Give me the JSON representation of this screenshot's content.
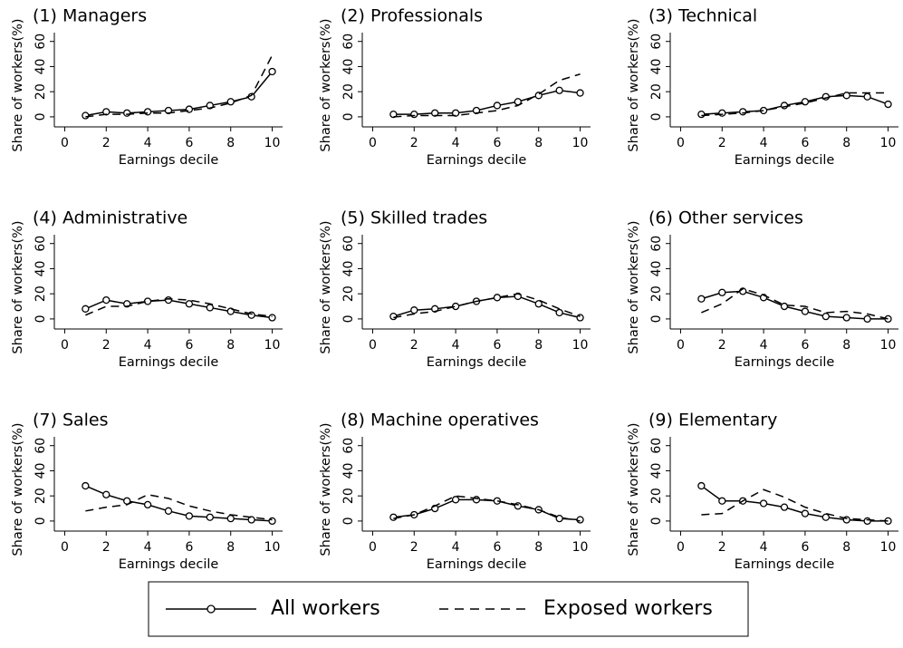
{
  "chart_data": [
    {
      "type": "line",
      "title": "(1) Managers",
      "xlabel": "Earnings decile",
      "ylabel": "Share of workers(%)",
      "x": [
        1,
        2,
        3,
        4,
        5,
        6,
        7,
        8,
        9,
        10
      ],
      "xlim": [
        -0.5,
        10.5
      ],
      "ylim": [
        -8,
        67
      ],
      "xticks": [
        0,
        2,
        4,
        6,
        8,
        10
      ],
      "yticks": [
        0,
        20,
        40,
        60
      ],
      "series": [
        {
          "name": "All workers",
          "color": "#000000",
          "dash": "solid",
          "marker": "circle",
          "values": [
            1,
            4,
            3,
            4,
            5,
            6,
            9,
            12,
            16,
            36
          ]
        },
        {
          "name": "Exposed workers",
          "color": "#000000",
          "dash": "dashed",
          "marker": "none",
          "values": [
            0,
            2,
            2,
            3,
            3,
            5,
            7,
            11,
            17,
            49
          ]
        }
      ]
    },
    {
      "type": "line",
      "title": "(2) Professionals",
      "xlabel": "Earnings decile",
      "ylabel": "Share of workers(%)",
      "x": [
        1,
        2,
        3,
        4,
        5,
        6,
        7,
        8,
        9,
        10
      ],
      "xlim": [
        -0.5,
        10.5
      ],
      "ylim": [
        -8,
        67
      ],
      "xticks": [
        0,
        2,
        4,
        6,
        8,
        10
      ],
      "yticks": [
        0,
        20,
        40,
        60
      ],
      "series": [
        {
          "name": "All workers",
          "color": "#000000",
          "dash": "solid",
          "marker": "circle",
          "values": [
            2,
            2,
            3,
            3,
            5,
            9,
            12,
            17,
            21,
            19
          ]
        },
        {
          "name": "Exposed workers",
          "color": "#000000",
          "dash": "dashed",
          "marker": "none",
          "values": [
            0,
            1,
            1,
            1,
            3,
            5,
            9,
            18,
            29,
            34
          ]
        }
      ]
    },
    {
      "type": "line",
      "title": "(3) Technical",
      "xlabel": "Earnings decile",
      "ylabel": "Share of workers(%)",
      "x": [
        1,
        2,
        3,
        4,
        5,
        6,
        7,
        8,
        9,
        10
      ],
      "xlim": [
        -0.5,
        10.5
      ],
      "ylim": [
        -8,
        67
      ],
      "xticks": [
        0,
        2,
        4,
        6,
        8,
        10
      ],
      "yticks": [
        0,
        20,
        40,
        60
      ],
      "series": [
        {
          "name": "All workers",
          "color": "#000000",
          "dash": "solid",
          "marker": "circle",
          "values": [
            2,
            3,
            4,
            5,
            9,
            12,
            16,
            17,
            16,
            10
          ]
        },
        {
          "name": "Exposed workers",
          "color": "#000000",
          "dash": "dashed",
          "marker": "none",
          "values": [
            1,
            2,
            3,
            5,
            8,
            11,
            15,
            19,
            19,
            19
          ]
        }
      ]
    },
    {
      "type": "line",
      "title": "(4) Administrative",
      "xlabel": "Earnings decile",
      "ylabel": "Share of workers(%)",
      "x": [
        1,
        2,
        3,
        4,
        5,
        6,
        7,
        8,
        9,
        10
      ],
      "xlim": [
        -0.5,
        10.5
      ],
      "ylim": [
        -8,
        67
      ],
      "xticks": [
        0,
        2,
        4,
        6,
        8,
        10
      ],
      "yticks": [
        0,
        20,
        40,
        60
      ],
      "series": [
        {
          "name": "All workers",
          "color": "#000000",
          "dash": "solid",
          "marker": "circle",
          "values": [
            8,
            15,
            12,
            14,
            15,
            12,
            9,
            6,
            3,
            1
          ]
        },
        {
          "name": "Exposed workers",
          "color": "#000000",
          "dash": "dashed",
          "marker": "none",
          "values": [
            3,
            10,
            10,
            14,
            16,
            15,
            12,
            8,
            4,
            2
          ]
        }
      ]
    },
    {
      "type": "line",
      "title": "(5) Skilled trades",
      "xlabel": "Earnings decile",
      "ylabel": "Share of workers(%)",
      "x": [
        1,
        2,
        3,
        4,
        5,
        6,
        7,
        8,
        9,
        10
      ],
      "xlim": [
        -0.5,
        10.5
      ],
      "ylim": [
        -8,
        67
      ],
      "xticks": [
        0,
        2,
        4,
        6,
        8,
        10
      ],
      "yticks": [
        0,
        20,
        40,
        60
      ],
      "series": [
        {
          "name": "All workers",
          "color": "#000000",
          "dash": "solid",
          "marker": "circle",
          "values": [
            2,
            7,
            8,
            10,
            14,
            17,
            18,
            12,
            5,
            1
          ]
        },
        {
          "name": "Exposed workers",
          "color": "#000000",
          "dash": "dashed",
          "marker": "none",
          "values": [
            1,
            4,
            6,
            10,
            14,
            17,
            20,
            15,
            8,
            2
          ]
        }
      ]
    },
    {
      "type": "line",
      "title": "(6) Other services",
      "xlabel": "Earnings decile",
      "ylabel": "Share of workers(%)",
      "x": [
        1,
        2,
        3,
        4,
        5,
        6,
        7,
        8,
        9,
        10
      ],
      "xlim": [
        -0.5,
        10.5
      ],
      "ylim": [
        -8,
        67
      ],
      "xticks": [
        0,
        2,
        4,
        6,
        8,
        10
      ],
      "yticks": [
        0,
        20,
        40,
        60
      ],
      "series": [
        {
          "name": "All workers",
          "color": "#000000",
          "dash": "solid",
          "marker": "circle",
          "values": [
            16,
            21,
            22,
            17,
            10,
            6,
            2,
            1,
            0,
            0
          ]
        },
        {
          "name": "Exposed workers",
          "color": "#000000",
          "dash": "dashed",
          "marker": "none",
          "values": [
            5,
            12,
            24,
            19,
            11,
            10,
            5,
            6,
            4,
            0
          ]
        }
      ]
    },
    {
      "type": "line",
      "title": "(7) Sales",
      "xlabel": "Earnings decile",
      "ylabel": "Share of workers(%)",
      "x": [
        1,
        2,
        3,
        4,
        5,
        6,
        7,
        8,
        9,
        10
      ],
      "xlim": [
        -0.5,
        10.5
      ],
      "ylim": [
        -8,
        67
      ],
      "xticks": [
        0,
        2,
        4,
        6,
        8,
        10
      ],
      "yticks": [
        0,
        20,
        40,
        60
      ],
      "series": [
        {
          "name": "All workers",
          "color": "#000000",
          "dash": "solid",
          "marker": "circle",
          "values": [
            28,
            21,
            16,
            13,
            8,
            4,
            3,
            2,
            1,
            0
          ]
        },
        {
          "name": "Exposed workers",
          "color": "#000000",
          "dash": "dashed",
          "marker": "none",
          "values": [
            8,
            11,
            13,
            21,
            18,
            12,
            8,
            5,
            3,
            1
          ]
        }
      ]
    },
    {
      "type": "line",
      "title": "(8) Machine operatives",
      "xlabel": "Earnings decile",
      "ylabel": "Share of workers(%)",
      "x": [
        1,
        2,
        3,
        4,
        5,
        6,
        7,
        8,
        9,
        10
      ],
      "xlim": [
        -0.5,
        10.5
      ],
      "ylim": [
        -8,
        67
      ],
      "xticks": [
        0,
        2,
        4,
        6,
        8,
        10
      ],
      "yticks": [
        0,
        20,
        40,
        60
      ],
      "series": [
        {
          "name": "All workers",
          "color": "#000000",
          "dash": "solid",
          "marker": "circle",
          "values": [
            3,
            5,
            10,
            17,
            17,
            16,
            12,
            9,
            2,
            1
          ]
        },
        {
          "name": "Exposed workers",
          "color": "#000000",
          "dash": "dashed",
          "marker": "none",
          "values": [
            2,
            5,
            12,
            20,
            18,
            16,
            13,
            9,
            3,
            0
          ]
        }
      ]
    },
    {
      "type": "line",
      "title": "(9) Elementary",
      "xlabel": "Earnings decile",
      "ylabel": "Share of workers(%)",
      "x": [
        1,
        2,
        3,
        4,
        5,
        6,
        7,
        8,
        9,
        10
      ],
      "xlim": [
        -0.5,
        10.5
      ],
      "ylim": [
        -8,
        67
      ],
      "xticks": [
        0,
        2,
        4,
        6,
        8,
        10
      ],
      "yticks": [
        0,
        20,
        40,
        60
      ],
      "series": [
        {
          "name": "All workers",
          "color": "#000000",
          "dash": "solid",
          "marker": "circle",
          "values": [
            28,
            16,
            16,
            14,
            11,
            6,
            3,
            1,
            0,
            0
          ]
        },
        {
          "name": "Exposed workers",
          "color": "#000000",
          "dash": "dashed",
          "marker": "none",
          "values": [
            5,
            6,
            16,
            25,
            19,
            11,
            6,
            2,
            1,
            0
          ]
        }
      ]
    }
  ]
}
